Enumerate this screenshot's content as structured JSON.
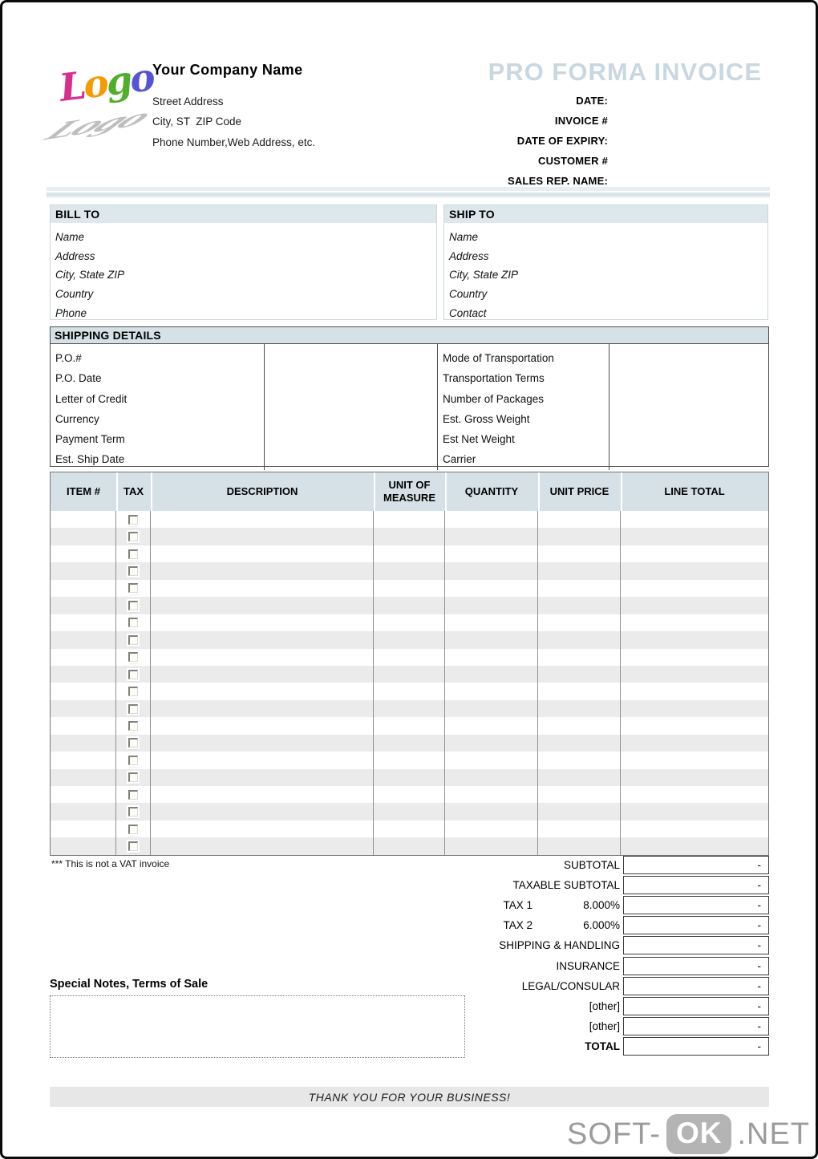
{
  "header": {
    "logo": {
      "word": "Logo",
      "letters": [
        "L",
        "o",
        "g",
        "o"
      ],
      "colors": [
        "#d6308f",
        "#f59b00",
        "#4fae2a",
        "#5653d4"
      ]
    },
    "company_name": "Your Company Name",
    "address_lines": [
      "Street Address",
      "City, ST  ZIP Code",
      "Phone Number,Web Address, etc."
    ],
    "title": "PRO FORMA INVOICE",
    "title_color": "#c9d7e1",
    "meta_labels": [
      "DATE:",
      "INVOICE #",
      "DATE OF EXPIRY:",
      "CUSTOMER #",
      "SALES REP. NAME:"
    ]
  },
  "bill_to": {
    "heading": "BILL TO",
    "lines": [
      "Name",
      "Address",
      "City, State ZIP",
      "Country",
      "Phone"
    ]
  },
  "ship_to": {
    "heading": "SHIP TO",
    "lines": [
      "Name",
      "Address",
      "City, State ZIP",
      "Country",
      "Contact"
    ]
  },
  "shipping_details": {
    "heading": "SHIPPING DETAILS",
    "left_labels": [
      "P.O.#",
      "P.O. Date",
      "Letter of Credit",
      "Currency",
      "Payment Term",
      "Est. Ship Date"
    ],
    "right_labels": [
      "Mode of Transportation",
      "Transportation Terms",
      "Number of Packages",
      "Est. Gross Weight",
      "Est Net Weight",
      "Carrier"
    ]
  },
  "items_table": {
    "columns": [
      "ITEM #",
      "TAX",
      "DESCRIPTION",
      "UNIT OF\nMEASURE",
      "QUANTITY",
      "UNIT PRICE",
      "LINE TOTAL"
    ],
    "row_count": 20,
    "header_bg": "#d5e1e6",
    "alt_row_bg": "#ebebeb"
  },
  "vat_note": "*** This is not a VAT invoice",
  "totals": {
    "rows": [
      {
        "label": "SUBTOTAL",
        "rate": "",
        "value": "-"
      },
      {
        "label": "TAXABLE SUBTOTAL",
        "rate": "",
        "value": "-"
      },
      {
        "label": "TAX 1",
        "rate": "8.000%",
        "value": "-"
      },
      {
        "label": "TAX 2",
        "rate": "6.000%",
        "value": "-"
      },
      {
        "label": "SHIPPING & HANDLING",
        "rate": "",
        "value": "-"
      },
      {
        "label": "INSURANCE",
        "rate": "",
        "value": "-"
      },
      {
        "label": "LEGAL/CONSULAR",
        "rate": "",
        "value": "-"
      },
      {
        "label": "[other]",
        "rate": "",
        "value": "-"
      },
      {
        "label": "[other]",
        "rate": "",
        "value": "-"
      },
      {
        "label": "TOTAL",
        "rate": "",
        "value": "-"
      }
    ]
  },
  "notes": {
    "heading": "Special Notes, Terms of Sale"
  },
  "footer": {
    "message": "THANK YOU FOR YOUR BUSINESS!"
  },
  "watermark": {
    "prefix": "SOFT-",
    "badge": "OK",
    "suffix": ".NET"
  }
}
